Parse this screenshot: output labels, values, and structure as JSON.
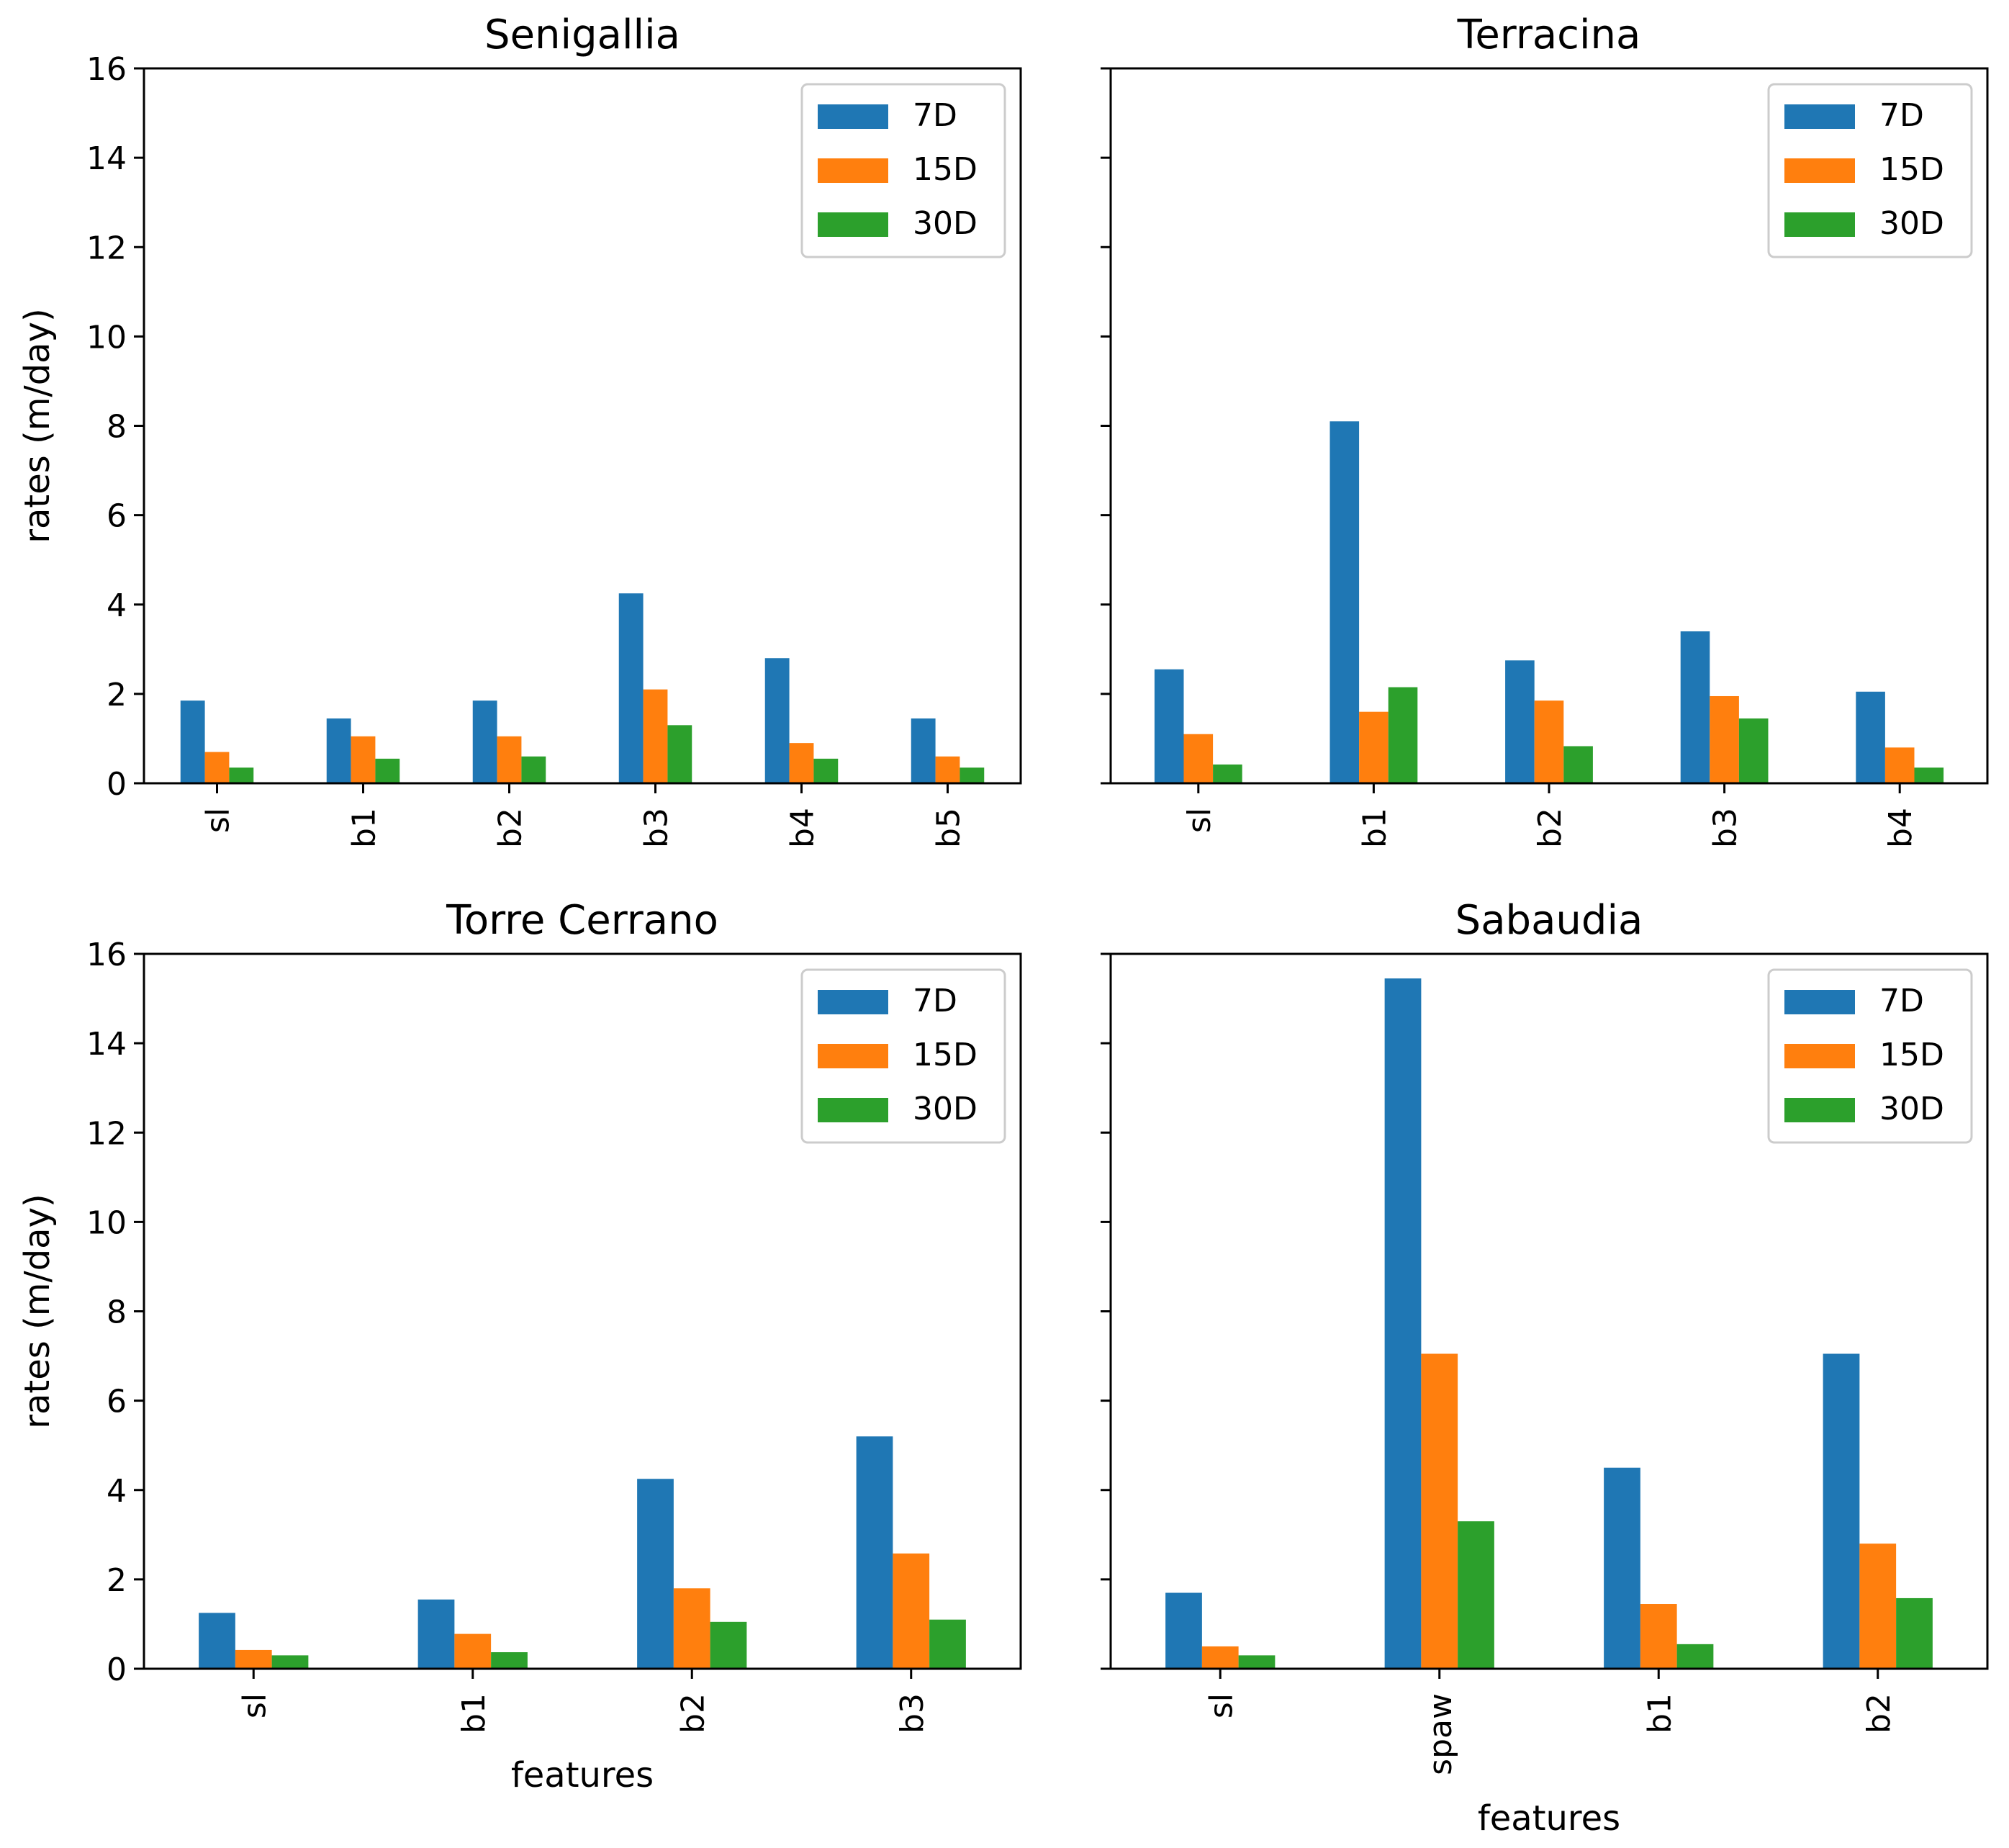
{
  "colors": {
    "7D": "#1f77b4",
    "15D": "#ff7f0e",
    "30D": "#2ca02c"
  },
  "chart_data": [
    {
      "type": "bar",
      "title": "Senigallia",
      "xlabel": "",
      "ylabel": "rates (m/day)",
      "ylim": [
        0,
        16
      ],
      "yticks": [
        "0",
        "2",
        "4",
        "6",
        "8",
        "10",
        "12",
        "14",
        "16"
      ],
      "legend_position": "top-right",
      "categories": [
        "sl",
        "b1",
        "b2",
        "b3",
        "b4",
        "b5"
      ],
      "series": [
        {
          "name": "7D",
          "values": [
            1.85,
            1.45,
            1.85,
            4.25,
            2.8,
            1.45
          ]
        },
        {
          "name": "15D",
          "values": [
            0.7,
            1.05,
            1.05,
            2.1,
            0.9,
            0.6
          ]
        },
        {
          "name": "30D",
          "values": [
            0.35,
            0.55,
            0.6,
            1.3,
            0.55,
            0.35
          ]
        }
      ]
    },
    {
      "type": "bar",
      "title": "Terracina",
      "xlabel": "",
      "ylabel": "",
      "ylim": [
        0,
        16
      ],
      "yticks": [],
      "legend_position": "top-right",
      "categories": [
        "sl",
        "b1",
        "b2",
        "b3",
        "b4"
      ],
      "series": [
        {
          "name": "7D",
          "values": [
            2.55,
            8.1,
            2.75,
            3.4,
            2.05
          ]
        },
        {
          "name": "15D",
          "values": [
            1.1,
            1.6,
            1.85,
            1.95,
            0.8
          ]
        },
        {
          "name": "30D",
          "values": [
            0.42,
            2.15,
            0.83,
            1.45,
            0.35
          ]
        }
      ]
    },
    {
      "type": "bar",
      "title": "Torre Cerrano",
      "xlabel": "features",
      "ylabel": "rates (m/day)",
      "ylim": [
        0,
        16
      ],
      "yticks": [
        "0",
        "2",
        "4",
        "6",
        "8",
        "10",
        "12",
        "14",
        "16"
      ],
      "legend_position": "top-right",
      "categories": [
        "sl",
        "b1",
        "b2",
        "b3"
      ],
      "series": [
        {
          "name": "7D",
          "values": [
            1.25,
            1.55,
            4.25,
            5.2
          ]
        },
        {
          "name": "15D",
          "values": [
            0.42,
            0.78,
            1.8,
            2.58
          ]
        },
        {
          "name": "30D",
          "values": [
            0.3,
            0.37,
            1.05,
            1.1
          ]
        }
      ]
    },
    {
      "type": "bar",
      "title": "Sabaudia",
      "xlabel": "features",
      "ylabel": "",
      "ylim": [
        0,
        16
      ],
      "yticks": [],
      "legend_position": "top-right",
      "categories": [
        "sl",
        "spaw",
        "b1",
        "b2"
      ],
      "series": [
        {
          "name": "7D",
          "values": [
            1.7,
            15.45,
            4.5,
            7.05
          ]
        },
        {
          "name": "15D",
          "values": [
            0.5,
            7.05,
            1.45,
            2.8
          ]
        },
        {
          "name": "30D",
          "values": [
            0.3,
            3.3,
            0.55,
            1.58
          ]
        }
      ]
    }
  ]
}
